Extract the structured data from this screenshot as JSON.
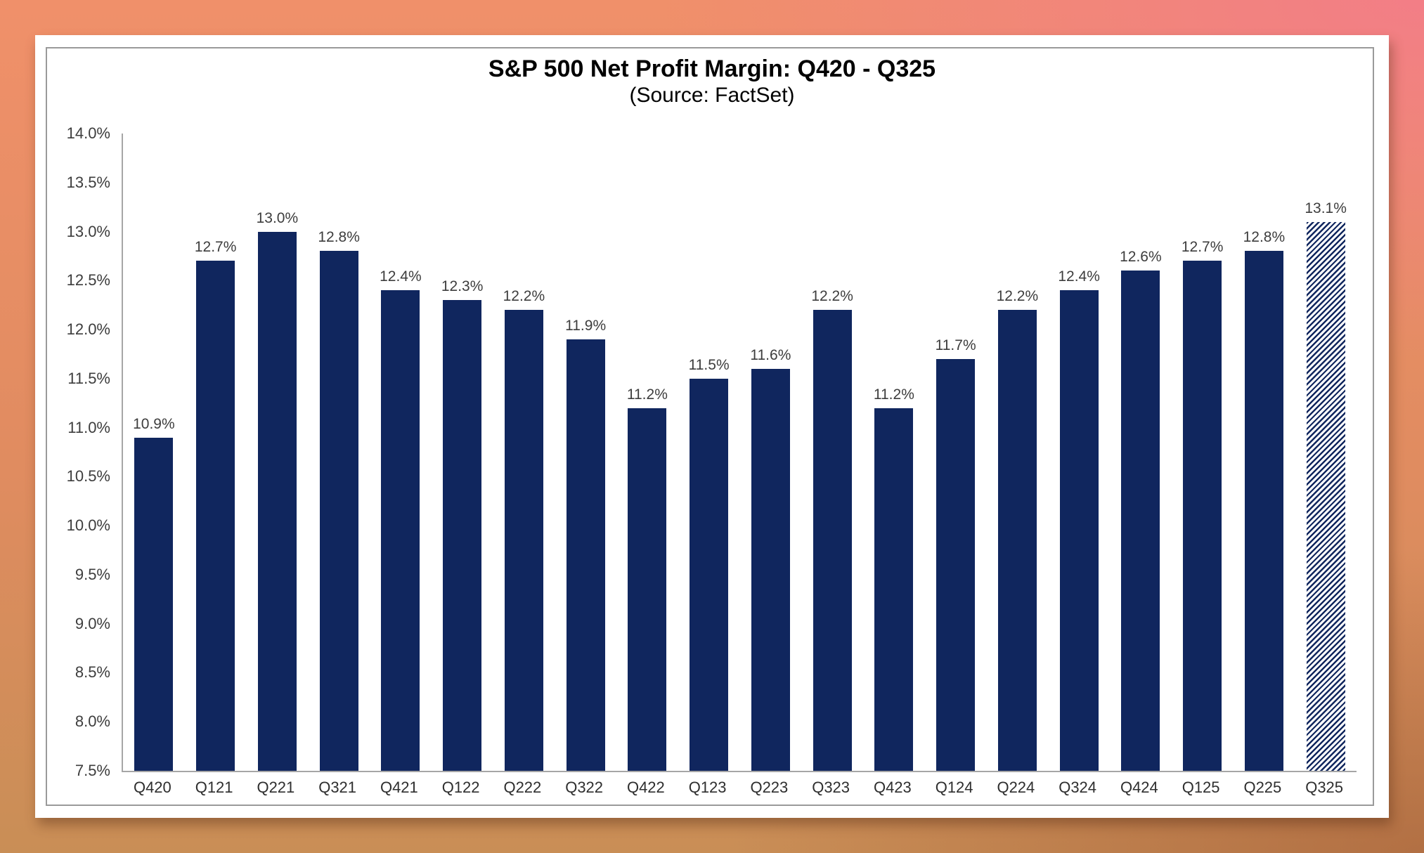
{
  "title": "S&P 500 Net Profit Margin: Q420 - Q325",
  "subtitle": "(Source: FactSet)",
  "chart_data": {
    "type": "bar",
    "title": "S&P 500 Net Profit Margin: Q420 - Q325",
    "subtitle": "(Source: FactSet)",
    "categories": [
      "Q420",
      "Q121",
      "Q221",
      "Q321",
      "Q421",
      "Q122",
      "Q222",
      "Q322",
      "Q422",
      "Q123",
      "Q223",
      "Q323",
      "Q423",
      "Q124",
      "Q224",
      "Q324",
      "Q424",
      "Q125",
      "Q225",
      "Q325"
    ],
    "values": [
      10.9,
      12.7,
      13.0,
      12.8,
      12.4,
      12.3,
      12.2,
      11.9,
      11.2,
      11.5,
      11.6,
      12.2,
      11.2,
      11.7,
      12.2,
      12.4,
      12.6,
      12.7,
      12.8,
      13.1
    ],
    "data_labels": [
      "10.9%",
      "12.7%",
      "13.0%",
      "12.8%",
      "12.4%",
      "12.3%",
      "12.2%",
      "11.9%",
      "11.2%",
      "11.5%",
      "11.6%",
      "12.2%",
      "11.2%",
      "11.7%",
      "12.2%",
      "12.4%",
      "12.6%",
      "12.7%",
      "12.8%",
      "13.1%"
    ],
    "hatched_index": 19,
    "ylim": [
      7.5,
      14.0
    ],
    "ytick_step": 0.5,
    "yticklabels": [
      "14.0%",
      "13.5%",
      "13.0%",
      "12.5%",
      "12.0%",
      "11.5%",
      "11.0%",
      "10.5%",
      "10.0%",
      "9.5%",
      "9.0%",
      "8.5%",
      "8.0%",
      "7.5%"
    ],
    "xlabel": "",
    "ylabel": "",
    "grid": false,
    "legend_position": "none",
    "bar_color": "#10265e",
    "axis_color": "#a6a6a6",
    "label_color": "#3d3d3d"
  }
}
